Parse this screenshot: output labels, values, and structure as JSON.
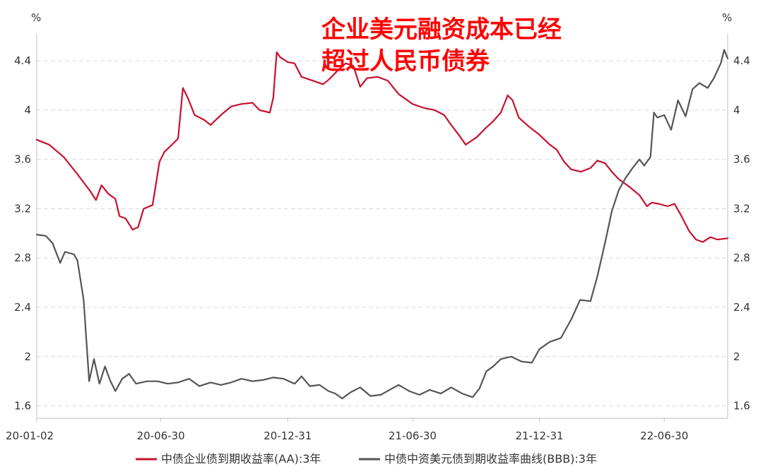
{
  "chart_data": {
    "type": "line",
    "annotation": [
      "企业美元融资成本已经",
      "超过人民币债券"
    ],
    "y_unit_left": "%",
    "y_unit_right": "%",
    "ylim": [
      1.5,
      4.55
    ],
    "y_ticks": [
      "4.4",
      "4",
      "3.6",
      "3.2",
      "2.8",
      "2.4",
      "2",
      "1.6"
    ],
    "y_tick_values": [
      4.4,
      4.0,
      3.6,
      3.2,
      2.8,
      2.4,
      2.0,
      1.6
    ],
    "x_range": [
      "2020-01-02",
      "2022-09-30"
    ],
    "x_ticks": [
      "20-01-02",
      "20-06-30",
      "20-12-31",
      "21-06-30",
      "21-12-31",
      "22-06-30"
    ],
    "x_tick_dates": [
      "2020-01-02",
      "2020-06-30",
      "2020-12-31",
      "2021-06-30",
      "2021-12-31",
      "2022-06-30"
    ],
    "grid": true,
    "legend_position": "bottom",
    "series": [
      {
        "name": "中债企业债到期收益率(AA):3年",
        "color": "#c8102e",
        "points": [
          [
            "2020-01-02",
            3.76
          ],
          [
            "2020-01-20",
            3.72
          ],
          [
            "2020-02-10",
            3.62
          ],
          [
            "2020-03-01",
            3.48
          ],
          [
            "2020-03-20",
            3.34
          ],
          [
            "2020-03-28",
            3.27
          ],
          [
            "2020-04-05",
            3.39
          ],
          [
            "2020-04-15",
            3.32
          ],
          [
            "2020-04-25",
            3.28
          ],
          [
            "2020-05-01",
            3.14
          ],
          [
            "2020-05-10",
            3.12
          ],
          [
            "2020-05-20",
            3.03
          ],
          [
            "2020-05-28",
            3.05
          ],
          [
            "2020-06-05",
            3.2
          ],
          [
            "2020-06-18",
            3.23
          ],
          [
            "2020-06-28",
            3.58
          ],
          [
            "2020-07-05",
            3.66
          ],
          [
            "2020-07-18",
            3.73
          ],
          [
            "2020-07-25",
            3.77
          ],
          [
            "2020-08-01",
            4.18
          ],
          [
            "2020-08-08",
            4.1
          ],
          [
            "2020-08-18",
            3.96
          ],
          [
            "2020-09-01",
            3.92
          ],
          [
            "2020-09-10",
            3.88
          ],
          [
            "2020-09-25",
            3.96
          ],
          [
            "2020-10-10",
            4.03
          ],
          [
            "2020-10-25",
            4.05
          ],
          [
            "2020-11-10",
            4.06
          ],
          [
            "2020-11-20",
            4.0
          ],
          [
            "2020-12-05",
            3.98
          ],
          [
            "2020-12-10",
            4.1
          ],
          [
            "2020-12-15",
            4.47
          ],
          [
            "2020-12-20",
            4.43
          ],
          [
            "2020-12-31",
            4.39
          ],
          [
            "2021-01-10",
            4.38
          ],
          [
            "2021-01-20",
            4.27
          ],
          [
            "2021-02-05",
            4.24
          ],
          [
            "2021-02-20",
            4.21
          ],
          [
            "2021-03-01",
            4.25
          ],
          [
            "2021-03-15",
            4.33
          ],
          [
            "2021-03-25",
            4.38
          ],
          [
            "2021-04-05",
            4.36
          ],
          [
            "2021-04-15",
            4.19
          ],
          [
            "2021-04-25",
            4.26
          ],
          [
            "2021-05-10",
            4.27
          ],
          [
            "2021-05-25",
            4.24
          ],
          [
            "2021-06-10",
            4.13
          ],
          [
            "2021-06-30",
            4.05
          ],
          [
            "2021-07-15",
            4.02
          ],
          [
            "2021-08-01",
            4.0
          ],
          [
            "2021-08-15",
            3.96
          ],
          [
            "2021-08-25",
            3.88
          ],
          [
            "2021-09-05",
            3.8
          ],
          [
            "2021-09-15",
            3.72
          ],
          [
            "2021-10-01",
            3.78
          ],
          [
            "2021-10-15",
            3.86
          ],
          [
            "2021-10-25",
            3.91
          ],
          [
            "2021-11-05",
            3.98
          ],
          [
            "2021-11-15",
            4.12
          ],
          [
            "2021-11-22",
            4.08
          ],
          [
            "2021-12-01",
            3.94
          ],
          [
            "2021-12-15",
            3.87
          ],
          [
            "2021-12-31",
            3.8
          ],
          [
            "2022-01-15",
            3.72
          ],
          [
            "2022-01-25",
            3.68
          ],
          [
            "2022-02-05",
            3.58
          ],
          [
            "2022-02-15",
            3.52
          ],
          [
            "2022-03-01",
            3.5
          ],
          [
            "2022-03-15",
            3.53
          ],
          [
            "2022-03-25",
            3.59
          ],
          [
            "2022-04-05",
            3.57
          ],
          [
            "2022-04-15",
            3.5
          ],
          [
            "2022-04-25",
            3.44
          ],
          [
            "2022-05-10",
            3.38
          ],
          [
            "2022-05-25",
            3.31
          ],
          [
            "2022-06-05",
            3.22
          ],
          [
            "2022-06-12",
            3.25
          ],
          [
            "2022-06-22",
            3.24
          ],
          [
            "2022-07-05",
            3.22
          ],
          [
            "2022-07-15",
            3.24
          ],
          [
            "2022-07-25",
            3.14
          ],
          [
            "2022-08-05",
            3.02
          ],
          [
            "2022-08-15",
            2.95
          ],
          [
            "2022-08-25",
            2.93
          ],
          [
            "2022-09-05",
            2.97
          ],
          [
            "2022-09-15",
            2.95
          ],
          [
            "2022-09-30",
            2.96
          ]
        ]
      },
      {
        "name": "中债中资美元债到期收益率曲线(BBB):3年",
        "color": "#555555",
        "points": [
          [
            "2020-01-02",
            2.99
          ],
          [
            "2020-01-15",
            2.98
          ],
          [
            "2020-01-25",
            2.92
          ],
          [
            "2020-02-05",
            2.76
          ],
          [
            "2020-02-12",
            2.85
          ],
          [
            "2020-02-25",
            2.83
          ],
          [
            "2020-03-01",
            2.78
          ],
          [
            "2020-03-10",
            2.46
          ],
          [
            "2020-03-18",
            1.8
          ],
          [
            "2020-03-25",
            1.98
          ],
          [
            "2020-04-02",
            1.78
          ],
          [
            "2020-04-10",
            1.92
          ],
          [
            "2020-04-18",
            1.8
          ],
          [
            "2020-04-25",
            1.72
          ],
          [
            "2020-05-05",
            1.82
          ],
          [
            "2020-05-15",
            1.86
          ],
          [
            "2020-05-25",
            1.78
          ],
          [
            "2020-06-10",
            1.8
          ],
          [
            "2020-06-25",
            1.8
          ],
          [
            "2020-07-10",
            1.78
          ],
          [
            "2020-07-25",
            1.79
          ],
          [
            "2020-08-10",
            1.82
          ],
          [
            "2020-08-25",
            1.76
          ],
          [
            "2020-09-10",
            1.79
          ],
          [
            "2020-09-25",
            1.77
          ],
          [
            "2020-10-10",
            1.79
          ],
          [
            "2020-10-25",
            1.82
          ],
          [
            "2020-11-10",
            1.8
          ],
          [
            "2020-11-25",
            1.81
          ],
          [
            "2020-12-10",
            1.83
          ],
          [
            "2020-12-25",
            1.82
          ],
          [
            "2021-01-10",
            1.78
          ],
          [
            "2021-01-20",
            1.84
          ],
          [
            "2021-02-01",
            1.76
          ],
          [
            "2021-02-15",
            1.77
          ],
          [
            "2021-02-28",
            1.72
          ],
          [
            "2021-03-10",
            1.7
          ],
          [
            "2021-03-20",
            1.66
          ],
          [
            "2021-04-01",
            1.71
          ],
          [
            "2021-04-15",
            1.75
          ],
          [
            "2021-04-30",
            1.68
          ],
          [
            "2021-05-15",
            1.69
          ],
          [
            "2021-05-31",
            1.74
          ],
          [
            "2021-06-10",
            1.77
          ],
          [
            "2021-06-25",
            1.72
          ],
          [
            "2021-07-10",
            1.69
          ],
          [
            "2021-07-25",
            1.73
          ],
          [
            "2021-08-10",
            1.7
          ],
          [
            "2021-08-25",
            1.75
          ],
          [
            "2021-09-10",
            1.7
          ],
          [
            "2021-09-25",
            1.67
          ],
          [
            "2021-10-05",
            1.74
          ],
          [
            "2021-10-15",
            1.88
          ],
          [
            "2021-10-25",
            1.92
          ],
          [
            "2021-11-05",
            1.98
          ],
          [
            "2021-11-20",
            2.0
          ],
          [
            "2021-12-05",
            1.96
          ],
          [
            "2021-12-20",
            1.95
          ],
          [
            "2021-12-31",
            2.06
          ],
          [
            "2022-01-15",
            2.12
          ],
          [
            "2022-01-31",
            2.15
          ],
          [
            "2022-02-15",
            2.3
          ],
          [
            "2022-02-28",
            2.46
          ],
          [
            "2022-03-15",
            2.45
          ],
          [
            "2022-03-25",
            2.65
          ],
          [
            "2022-04-05",
            2.92
          ],
          [
            "2022-04-15",
            3.18
          ],
          [
            "2022-04-25",
            3.35
          ],
          [
            "2022-05-05",
            3.45
          ],
          [
            "2022-05-15",
            3.53
          ],
          [
            "2022-05-25",
            3.6
          ],
          [
            "2022-06-01",
            3.55
          ],
          [
            "2022-06-10",
            3.62
          ],
          [
            "2022-06-15",
            3.98
          ],
          [
            "2022-06-20",
            3.94
          ],
          [
            "2022-06-30",
            3.96
          ],
          [
            "2022-07-10",
            3.84
          ],
          [
            "2022-07-20",
            4.08
          ],
          [
            "2022-07-31",
            3.95
          ],
          [
            "2022-08-10",
            4.17
          ],
          [
            "2022-08-20",
            4.22
          ],
          [
            "2022-09-01",
            4.18
          ],
          [
            "2022-09-10",
            4.26
          ],
          [
            "2022-09-20",
            4.38
          ],
          [
            "2022-09-25",
            4.49
          ],
          [
            "2022-09-30",
            4.42
          ]
        ]
      }
    ]
  }
}
